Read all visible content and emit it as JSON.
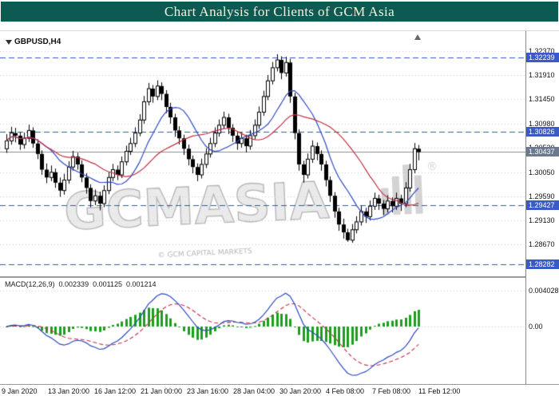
{
  "header": {
    "title": "Chart Analysis for Clients of GCM Asia"
  },
  "chart": {
    "symbol_label": "GBPUSD,H4",
    "watermark": {
      "text": "GCMASIA",
      "subtext": "© GCM CAPITAL MARKETS"
    }
  },
  "macd_panel": {
    "label": "MACD(12,26,9)",
    "value_macd": "0.002339",
    "value_signal": "0.001125",
    "value_hist": "0.001214"
  },
  "chart_data": {
    "type": "candlestick",
    "symbol": "GBPUSD",
    "timeframe": "H4",
    "y_axis": {
      "ticks": [
        "1.32370",
        "1.31910",
        "1.31450",
        "1.30980",
        "1.30520",
        "1.30050",
        "1.29590",
        "1.29130",
        "1.28670"
      ],
      "range": [
        1.2806,
        1.3272
      ]
    },
    "level_lines": [
      "1.32239",
      "1.30826",
      "1.29427",
      "1.28282"
    ],
    "current_price": "1.30437",
    "x_axis": {
      "ticks": [
        "9 Jan 2020",
        "13 Jan 20:00",
        "16 Jan 12:00",
        "21 Jan 00:00",
        "23 Jan 16:00",
        "28 Jan 04:00",
        "30 Jan 20:00",
        "4 Feb 08:00",
        "7 Feb 08:00",
        "11 Feb 12:00"
      ]
    },
    "colors": {
      "grid": "#c9c9c9",
      "level_line": "#2f55cc",
      "level_badge": "#3a5bc7",
      "current_line": "#8c8c8c",
      "current_badge": "#6b7a8f",
      "wick": "#000000",
      "bull_fill": "#ffffff",
      "bear_fill": "#000000"
    },
    "overlays": [
      {
        "name": "ma-fast",
        "period": 10,
        "color": "#2f49c0"
      },
      {
        "name": "ma-slow",
        "period": 21,
        "color": "#c03040"
      }
    ],
    "candles": [
      [
        1.305,
        1.3078,
        1.3042,
        1.3065
      ],
      [
        1.3065,
        1.3092,
        1.3058,
        1.308
      ],
      [
        1.308,
        1.309,
        1.3062,
        1.3075
      ],
      [
        1.3075,
        1.3082,
        1.3048,
        1.3058
      ],
      [
        1.3058,
        1.3081,
        1.305,
        1.307
      ],
      [
        1.307,
        1.3096,
        1.3063,
        1.3085
      ],
      [
        1.3085,
        1.3091,
        1.3052,
        1.306
      ],
      [
        1.306,
        1.3068,
        1.303,
        1.304
      ],
      [
        1.304,
        1.3047,
        1.3,
        1.301
      ],
      [
        1.301,
        1.3022,
        1.2984,
        1.2995
      ],
      [
        1.2995,
        1.3018,
        1.2988,
        1.3005
      ],
      [
        1.3005,
        1.3012,
        1.2975,
        1.2985
      ],
      [
        1.2985,
        1.2995,
        1.2958,
        1.297
      ],
      [
        1.297,
        1.3002,
        1.2962,
        1.299
      ],
      [
        1.299,
        1.3026,
        1.2983,
        1.3015
      ],
      [
        1.3015,
        1.3046,
        1.3008,
        1.3035
      ],
      [
        1.3035,
        1.3042,
        1.301,
        1.302
      ],
      [
        1.302,
        1.3028,
        1.2986,
        1.2995
      ],
      [
        1.2995,
        1.3003,
        1.2964,
        1.2975
      ],
      [
        1.2975,
        1.2982,
        1.2938,
        1.295
      ],
      [
        1.295,
        1.2972,
        1.2942,
        1.296
      ],
      [
        1.296,
        1.2968,
        1.2932,
        1.2945
      ],
      [
        1.2945,
        1.298,
        1.2938,
        1.297
      ],
      [
        1.297,
        1.3006,
        1.2963,
        1.2995
      ],
      [
        1.2995,
        1.3021,
        1.2988,
        1.301
      ],
      [
        1.301,
        1.3018,
        1.299,
        1.3
      ],
      [
        1.3,
        1.3035,
        1.2994,
        1.3025
      ],
      [
        1.3025,
        1.3056,
        1.3018,
        1.3045
      ],
      [
        1.3045,
        1.3071,
        1.3038,
        1.306
      ],
      [
        1.306,
        1.3091,
        1.3053,
        1.308
      ],
      [
        1.308,
        1.3116,
        1.3074,
        1.3105
      ],
      [
        1.3105,
        1.3151,
        1.3098,
        1.314
      ],
      [
        1.314,
        1.3176,
        1.3133,
        1.3165
      ],
      [
        1.3165,
        1.3172,
        1.3138,
        1.315
      ],
      [
        1.315,
        1.3181,
        1.3143,
        1.317
      ],
      [
        1.317,
        1.3177,
        1.3143,
        1.3155
      ],
      [
        1.3155,
        1.3162,
        1.3118,
        1.313
      ],
      [
        1.313,
        1.3138,
        1.3098,
        1.311
      ],
      [
        1.311,
        1.3117,
        1.3073,
        1.3085
      ],
      [
        1.3085,
        1.3093,
        1.3058,
        1.307
      ],
      [
        1.307,
        1.3077,
        1.3038,
        1.305
      ],
      [
        1.305,
        1.3058,
        1.3018,
        1.303
      ],
      [
        1.303,
        1.3037,
        1.3003,
        1.3015
      ],
      [
        1.3015,
        1.3022,
        1.2988,
        1.3
      ],
      [
        1.3,
        1.3031,
        1.2993,
        1.302
      ],
      [
        1.302,
        1.3051,
        1.3013,
        1.304
      ],
      [
        1.304,
        1.3071,
        1.3033,
        1.306
      ],
      [
        1.306,
        1.3091,
        1.3053,
        1.308
      ],
      [
        1.308,
        1.3106,
        1.3073,
        1.3095
      ],
      [
        1.3095,
        1.3121,
        1.3088,
        1.311
      ],
      [
        1.311,
        1.3117,
        1.3078,
        1.309
      ],
      [
        1.309,
        1.3097,
        1.3063,
        1.3075
      ],
      [
        1.3075,
        1.3082,
        1.3048,
        1.306
      ],
      [
        1.306,
        1.3081,
        1.3052,
        1.307
      ],
      [
        1.307,
        1.3077,
        1.3043,
        1.3055
      ],
      [
        1.3055,
        1.3086,
        1.3048,
        1.3075
      ],
      [
        1.3075,
        1.3106,
        1.3068,
        1.3095
      ],
      [
        1.3095,
        1.3131,
        1.3088,
        1.312
      ],
      [
        1.312,
        1.3161,
        1.3113,
        1.315
      ],
      [
        1.315,
        1.3191,
        1.3143,
        1.318
      ],
      [
        1.318,
        1.3216,
        1.3173,
        1.3205
      ],
      [
        1.3205,
        1.3231,
        1.3198,
        1.322
      ],
      [
        1.322,
        1.3227,
        1.3183,
        1.3195
      ],
      [
        1.3195,
        1.3226,
        1.3188,
        1.3215
      ],
      [
        1.3215,
        1.3222,
        1.3138,
        1.315
      ],
      [
        1.315,
        1.3157,
        1.3068,
        1.308
      ],
      [
        1.308,
        1.3087,
        1.3008,
        1.302
      ],
      [
        1.302,
        1.3027,
        1.2985,
        1.3
      ],
      [
        1.3,
        1.3041,
        1.2993,
        1.303
      ],
      [
        1.303,
        1.3066,
        1.3023,
        1.3055
      ],
      [
        1.3055,
        1.3062,
        1.3028,
        1.304
      ],
      [
        1.304,
        1.3047,
        1.3008,
        1.302
      ],
      [
        1.302,
        1.3027,
        1.2978,
        1.299
      ],
      [
        1.299,
        1.2997,
        1.2948,
        1.296
      ],
      [
        1.296,
        1.2967,
        1.2918,
        1.293
      ],
      [
        1.293,
        1.2937,
        1.2893,
        1.2905
      ],
      [
        1.2905,
        1.2916,
        1.2878,
        1.289
      ],
      [
        1.289,
        1.2897,
        1.2872,
        1.2875
      ],
      [
        1.2875,
        1.2906,
        1.287,
        1.2895
      ],
      [
        1.2895,
        1.2921,
        1.2888,
        1.291
      ],
      [
        1.291,
        1.2941,
        1.2903,
        1.293
      ],
      [
        1.293,
        1.2937,
        1.2908,
        1.292
      ],
      [
        1.292,
        1.2951,
        1.2913,
        1.294
      ],
      [
        1.294,
        1.2966,
        1.2933,
        1.2955
      ],
      [
        1.2955,
        1.2962,
        1.2933,
        1.2945
      ],
      [
        1.2945,
        1.2952,
        1.2923,
        1.2935
      ],
      [
        1.2935,
        1.2961,
        1.2928,
        1.295
      ],
      [
        1.295,
        1.2957,
        1.2928,
        1.294
      ],
      [
        1.294,
        1.2966,
        1.2933,
        1.2955
      ],
      [
        1.2955,
        1.2962,
        1.2931,
        1.2945
      ],
      [
        1.2945,
        1.2986,
        1.2938,
        1.2975
      ],
      [
        1.2975,
        1.3021,
        1.2968,
        1.301
      ],
      [
        1.301,
        1.3061,
        1.3003,
        1.305
      ],
      [
        1.305,
        1.3057,
        1.3028,
        1.30437
      ]
    ],
    "macd": {
      "params": [
        12,
        26,
        9
      ],
      "axis_ticks": [
        {
          "label": "0.004028",
          "value": 0.004028
        },
        {
          "label": "0.00",
          "value": 0
        }
      ],
      "colors": {
        "macd": "#2f49c0",
        "signal": "#c03040",
        "histogram": "#1d9e1d"
      }
    }
  }
}
